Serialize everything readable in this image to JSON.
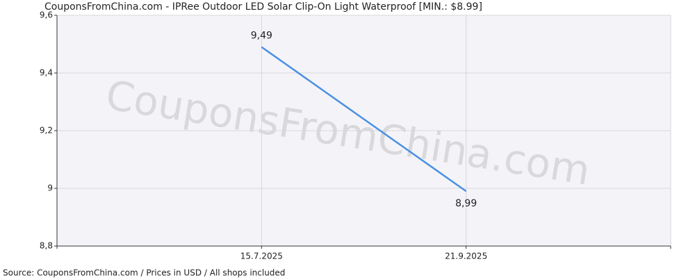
{
  "chart_data": {
    "type": "line",
    "title": "CouponsFromChina.com - IPRee Outdoor LED Solar Clip-On Light Waterproof [MIN.: $8.99]",
    "watermark": "CouponsFromChina.com",
    "source": "Source: CouponsFromChina.com / Prices in USD / All shops included",
    "categories": [
      null,
      "15.7.2025",
      "21.9.2025",
      null
    ],
    "series": [
      {
        "name": "Price",
        "color": "#4a90e2",
        "values": [
          null,
          9.49,
          8.99,
          null
        ],
        "value_labels": [
          null,
          "9,49",
          "8,99",
          null
        ]
      }
    ],
    "ylim": [
      8.8,
      9.6
    ],
    "yticks": [
      {
        "value": 8.8,
        "label": "8,8"
      },
      9,
      {
        "value": 9.2,
        "label": "9,2"
      },
      {
        "value": 9.4,
        "label": "9,4"
      },
      {
        "value": 9.6,
        "label": "9,6"
      }
    ],
    "grid": true
  }
}
